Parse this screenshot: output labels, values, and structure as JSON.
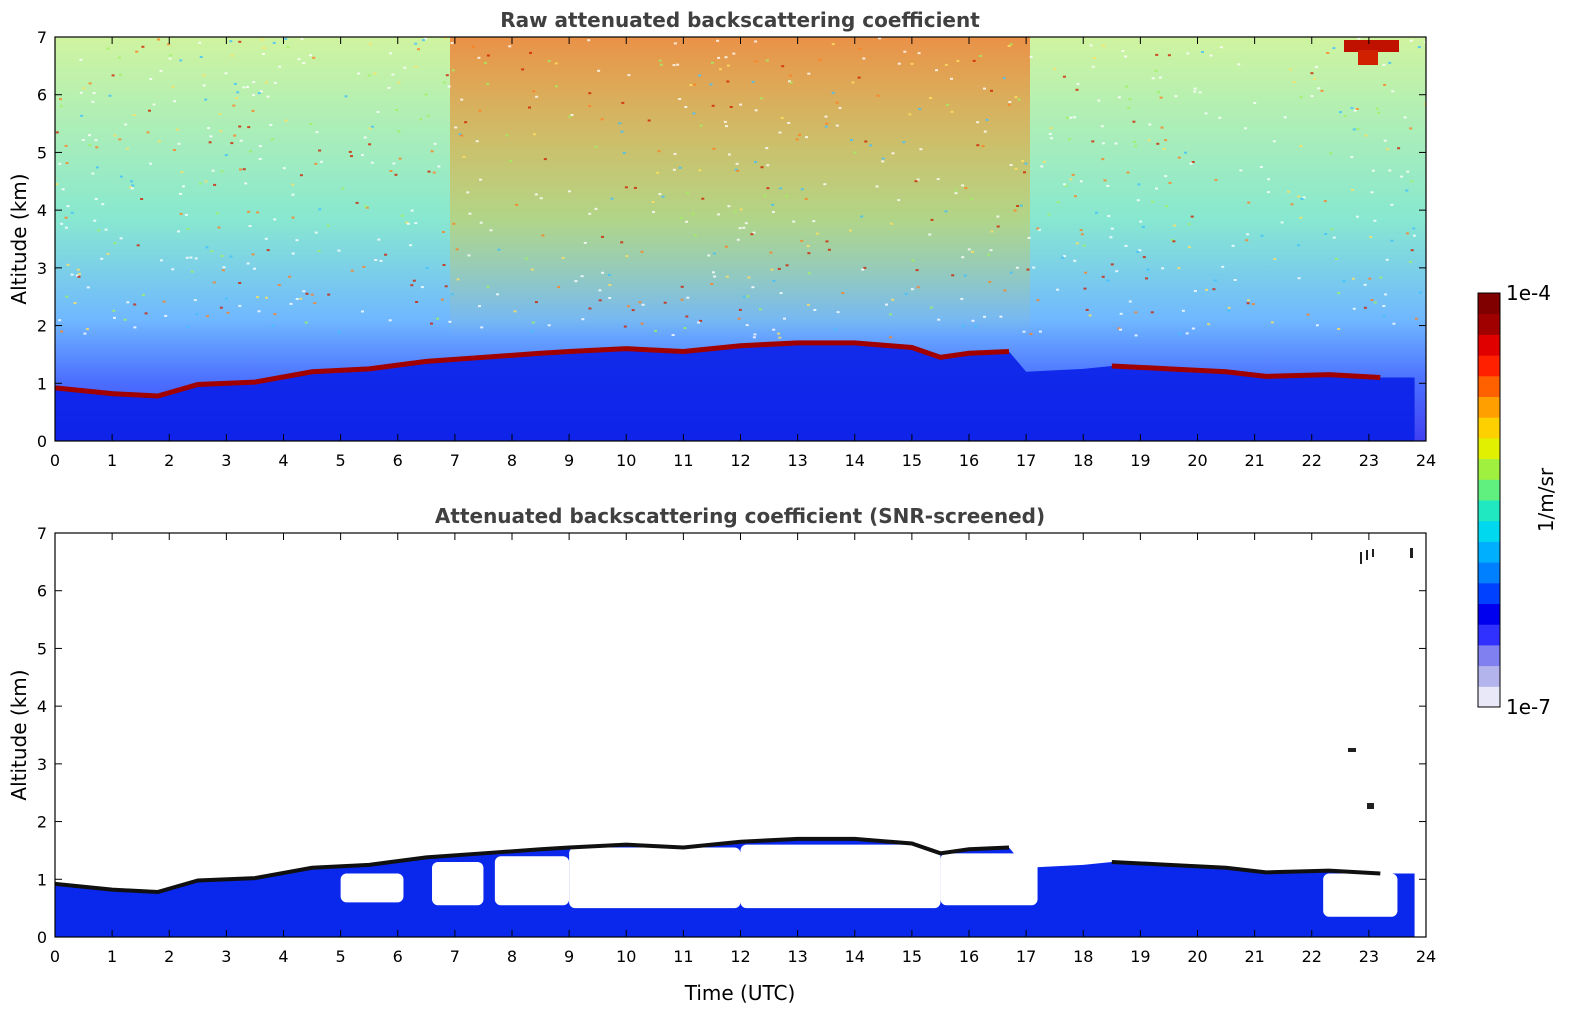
{
  "chart_data": [
    {
      "type": "heatmap",
      "title": "Raw attenuated backscattering coefficient",
      "xlabel": "",
      "ylabel": "Altitude (km)",
      "xlim": [
        0,
        24
      ],
      "ylim": [
        0,
        7
      ],
      "xticks": [
        "0",
        "1",
        "2",
        "3",
        "4",
        "5",
        "6",
        "7",
        "8",
        "9",
        "10",
        "11",
        "12",
        "13",
        "14",
        "15",
        "16",
        "17",
        "18",
        "19",
        "20",
        "21",
        "22",
        "23",
        "24"
      ],
      "yticks": [
        "0",
        "1",
        "2",
        "3",
        "4",
        "5",
        "6",
        "7"
      ],
      "boundary_layer_top_km": [
        [
          0.0,
          0.92
        ],
        [
          1.0,
          0.82
        ],
        [
          1.8,
          0.78
        ],
        [
          2.5,
          0.98
        ],
        [
          3.5,
          1.02
        ],
        [
          4.5,
          1.2
        ],
        [
          5.5,
          1.25
        ],
        [
          6.5,
          1.38
        ],
        [
          7.5,
          1.45
        ],
        [
          8.5,
          1.52
        ],
        [
          9.0,
          1.55
        ],
        [
          10.0,
          1.6
        ],
        [
          11.0,
          1.55
        ],
        [
          12.0,
          1.65
        ],
        [
          13.0,
          1.7
        ],
        [
          14.0,
          1.7
        ],
        [
          15.0,
          1.62
        ],
        [
          15.5,
          1.45
        ],
        [
          16.0,
          1.52
        ],
        [
          16.7,
          1.55
        ]
      ],
      "boundary_layer_top_km_late": [
        [
          18.5,
          1.3
        ],
        [
          19.5,
          1.25
        ],
        [
          20.5,
          1.2
        ],
        [
          21.2,
          1.12
        ],
        [
          22.3,
          1.15
        ],
        [
          23.2,
          1.1
        ]
      ]
    },
    {
      "type": "heatmap",
      "title": "Attenuated backscattering coefficient (SNR-screened)",
      "xlabel": "Time (UTC)",
      "ylabel": "Altitude (km)",
      "xlim": [
        0,
        24
      ],
      "ylim": [
        0,
        7
      ],
      "xticks": [
        "0",
        "1",
        "2",
        "3",
        "4",
        "5",
        "6",
        "7",
        "8",
        "9",
        "10",
        "11",
        "12",
        "13",
        "14",
        "15",
        "16",
        "17",
        "18",
        "19",
        "20",
        "21",
        "22",
        "23",
        "24"
      ],
      "yticks": [
        "0",
        "1",
        "2",
        "3",
        "4",
        "5",
        "6",
        "7"
      ]
    }
  ],
  "colorbar": {
    "max_label": "1e-4",
    "min_label": "1e-7",
    "units_label": "1/m/sr",
    "colors": [
      "#e8e8f8",
      "#b4b4ec",
      "#8080f0",
      "#3030ff",
      "#0000ee",
      "#0040ff",
      "#0080ff",
      "#00b0ff",
      "#00d8f0",
      "#20e8c0",
      "#60f080",
      "#a0f040",
      "#e0f000",
      "#ffd000",
      "#ffa000",
      "#ff6000",
      "#ff2000",
      "#e00000",
      "#a00000",
      "#800000"
    ]
  }
}
